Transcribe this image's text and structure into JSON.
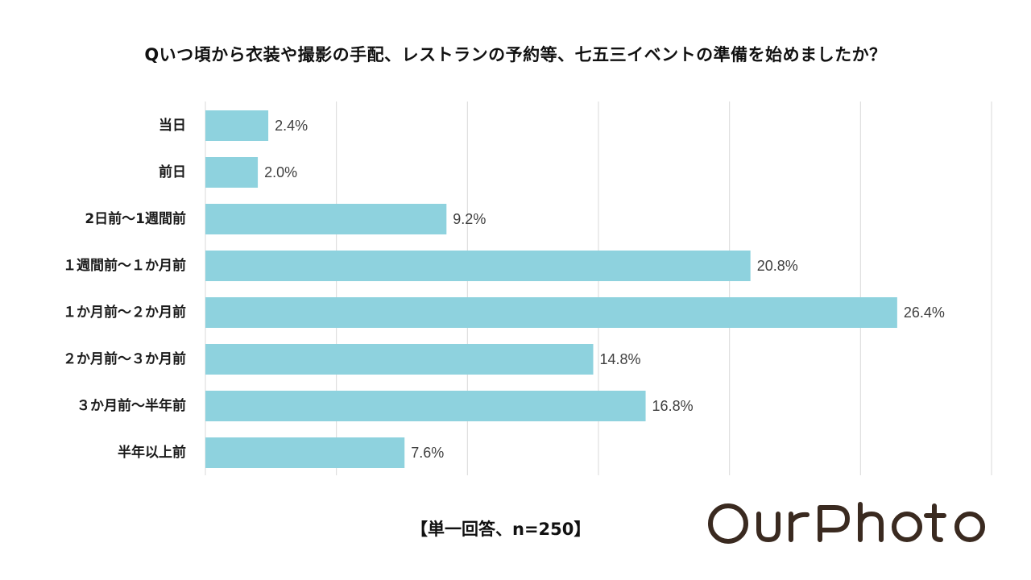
{
  "chart_data": {
    "type": "bar",
    "orientation": "horizontal",
    "title": "Qいつ頃から衣装や撮影の手配、レストランの予約等、七五三イベントの準備を始めましたか？",
    "categories": [
      "当日",
      "前日",
      "2日前～1週間前",
      "１週間前～１か月前",
      "１か月前～２か月前",
      "２か月前～３か月前",
      "３か月前～半年前",
      "半年以上前"
    ],
    "values": [
      2.4,
      2.0,
      9.2,
      20.8,
      26.4,
      14.8,
      16.8,
      7.6
    ],
    "value_labels": [
      "2.4%",
      "2.0%",
      "9.2%",
      "20.8%",
      "26.4%",
      "14.8%",
      "16.8%",
      "7.6%"
    ],
    "xlim": [
      0,
      30
    ],
    "grid": true,
    "bar_color": "#8ed2de",
    "note": "【単一回答、n=250】"
  },
  "logo": {
    "text": "OurPhoto",
    "color": "#3a2a20"
  }
}
